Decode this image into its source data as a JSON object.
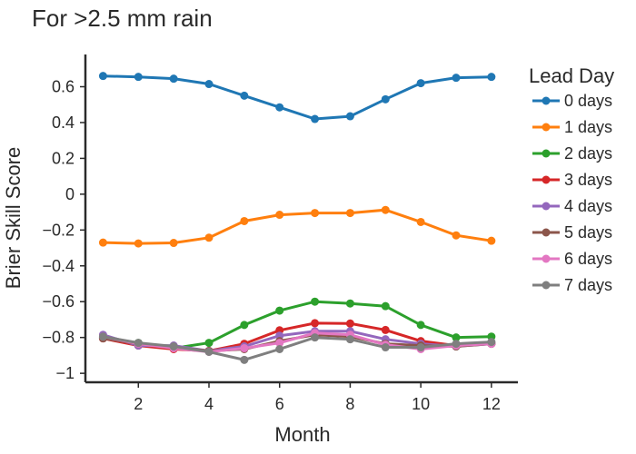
{
  "chart_data": {
    "type": "line",
    "title": "For >2.5 mm rain",
    "xlabel": "Month",
    "ylabel": "Brier Skill Score",
    "xlim": [
      0.5,
      12.75
    ],
    "ylim": [
      -1.05,
      0.78
    ],
    "xticks": [
      2,
      4,
      6,
      8,
      10,
      12
    ],
    "yticks": [
      0.6,
      0.4,
      0.2,
      0,
      -0.2,
      -0.4,
      -0.6,
      -0.8,
      -1
    ],
    "ytick_labels": [
      "0.6",
      "0.4",
      "0.2",
      "0",
      "−0.2",
      "−0.4",
      "−0.6",
      "−0.8",
      "−1"
    ],
    "grid": false,
    "legend_title": "Lead Day",
    "legend_position": "right",
    "x": [
      1,
      2,
      3,
      4,
      5,
      6,
      7,
      8,
      9,
      10,
      11,
      12
    ],
    "series": [
      {
        "name": "0 days",
        "color": "#1f77b4",
        "values": [
          0.66,
          0.655,
          0.645,
          0.615,
          0.55,
          0.485,
          0.42,
          0.435,
          0.53,
          0.62,
          0.65,
          0.655
        ]
      },
      {
        "name": "1 days",
        "color": "#ff7f0e",
        "values": [
          -0.27,
          -0.275,
          -0.272,
          -0.243,
          -0.15,
          -0.115,
          -0.105,
          -0.105,
          -0.088,
          -0.155,
          -0.23,
          -0.26
        ]
      },
      {
        "name": "2 days",
        "color": "#2ca02c",
        "values": [
          -0.8,
          -0.83,
          -0.86,
          -0.83,
          -0.73,
          -0.65,
          -0.6,
          -0.61,
          -0.625,
          -0.73,
          -0.8,
          -0.795
        ]
      },
      {
        "name": "3 days",
        "color": "#d62728",
        "values": [
          -0.805,
          -0.845,
          -0.865,
          -0.875,
          -0.835,
          -0.76,
          -0.72,
          -0.722,
          -0.758,
          -0.82,
          -0.845,
          -0.835
        ]
      },
      {
        "name": "4 days",
        "color": "#9467bd",
        "values": [
          -0.785,
          -0.845,
          -0.845,
          -0.875,
          -0.85,
          -0.79,
          -0.765,
          -0.765,
          -0.81,
          -0.835,
          -0.85,
          -0.835
        ]
      },
      {
        "name": "5 days",
        "color": "#8c564b",
        "values": [
          -0.805,
          -0.835,
          -0.855,
          -0.875,
          -0.865,
          -0.82,
          -0.785,
          -0.795,
          -0.835,
          -0.845,
          -0.85,
          -0.835
        ]
      },
      {
        "name": "6 days",
        "color": "#e377c2",
        "values": [
          -0.795,
          -0.835,
          -0.86,
          -0.88,
          -0.86,
          -0.83,
          -0.775,
          -0.785,
          -0.84,
          -0.865,
          -0.845,
          -0.835
        ]
      },
      {
        "name": "7 days",
        "color": "#7f7f7f",
        "values": [
          -0.795,
          -0.83,
          -0.85,
          -0.88,
          -0.925,
          -0.865,
          -0.8,
          -0.81,
          -0.855,
          -0.855,
          -0.835,
          -0.825
        ]
      }
    ]
  }
}
